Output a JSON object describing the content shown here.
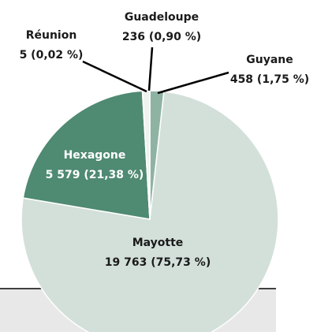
{
  "chart_data": {
    "type": "pie",
    "categories": [
      "Guyane",
      "Mayotte",
      "Hexagone",
      "Réunion",
      "Guadeloupe"
    ],
    "values": [
      458,
      19763,
      5579,
      5,
      236
    ],
    "value_labels": [
      "458 (1,75 %)",
      "19 763 (75,73 %)",
      "5 579 (21,38 %)",
      "5 (0,02 %)",
      "236 (0,90 %)"
    ],
    "colors": [
      "#8fb3a3",
      "#d3e0d9",
      "#4f8a72",
      "#ffffff",
      "#eef3f0"
    ]
  }
}
